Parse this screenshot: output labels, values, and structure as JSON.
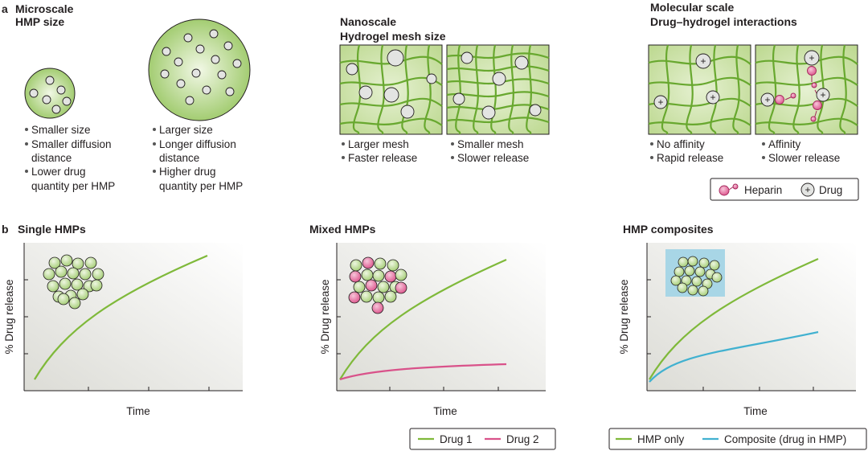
{
  "panel_a": {
    "letter": "a",
    "micro": {
      "title1": "Microscale",
      "title2": "HMP size",
      "small_bullets": [
        "Smaller size",
        "Smaller diffusion",
        "distance",
        "Lower drug",
        "quantity per HMP"
      ],
      "large_bullets": [
        "Larger size",
        "Longer diffusion",
        "distance",
        "Higher drug",
        "quantity per HMP"
      ]
    },
    "nano": {
      "title1": "Nanoscale",
      "title2": "Hydrogel mesh size",
      "left_bullets": [
        "Larger mesh",
        "Faster release"
      ],
      "right_bullets": [
        "Smaller mesh",
        "Slower release"
      ]
    },
    "molecular": {
      "title1": "Molecular scale",
      "title2": "Drug–hydrogel interactions",
      "left_bullets": [
        "No affinity",
        "Rapid release"
      ],
      "right_bullets": [
        "Affinity",
        "Slower release"
      ],
      "legend": {
        "heparin": "Heparin",
        "drug": "Drug"
      },
      "plus": "+"
    }
  },
  "panel_b": {
    "letter": "b",
    "single": {
      "title": "Single HMPs",
      "xlabel": "Time",
      "ylabel": "% Drug release"
    },
    "mixed": {
      "title": "Mixed HMPs",
      "xlabel": "Time",
      "ylabel": "% Drug release",
      "legend": [
        "Drug 1",
        "Drug 2"
      ]
    },
    "composite": {
      "title": "HMP composites",
      "xlabel": "Time",
      "ylabel": "% Drug release",
      "legend": [
        "HMP only",
        "Composite (drug in HMP)"
      ]
    }
  },
  "colors": {
    "green": "#7fb93a",
    "pink": "#d9528a",
    "blue": "#41b1d0",
    "mesh_bg": "#c9dfa6",
    "bead": "#c3dea0"
  }
}
